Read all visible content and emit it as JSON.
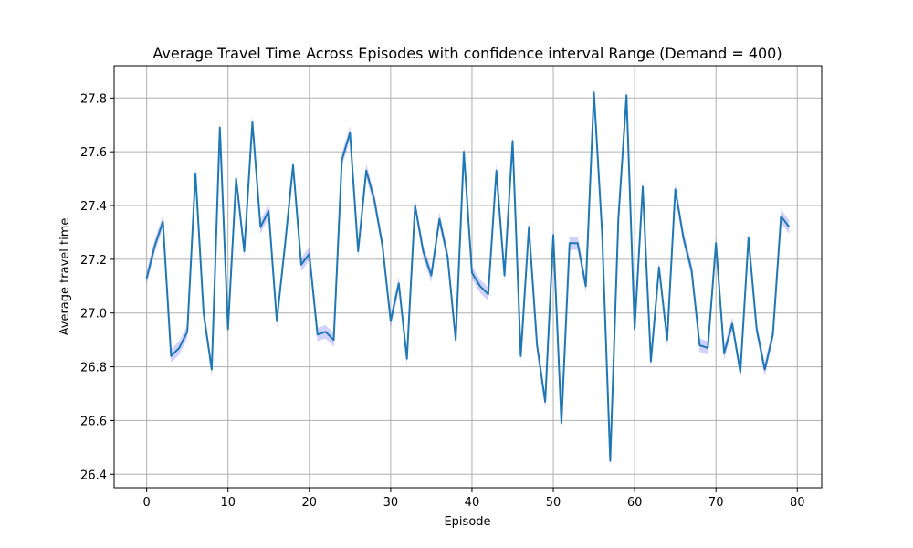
{
  "chart_data": {
    "type": "line",
    "title": "Average Travel Time Across Episodes with confidence interval Range (Demand = 400)",
    "xlabel": "Episode",
    "ylabel": "Average travel time",
    "xlim": [
      -4,
      83
    ],
    "ylim": [
      26.35,
      27.92
    ],
    "xticks": [
      0,
      10,
      20,
      30,
      40,
      50,
      60,
      70,
      80
    ],
    "yticks": [
      26.4,
      26.6,
      26.8,
      27.0,
      27.2,
      27.4,
      27.6,
      27.8
    ],
    "xtick_labels": [
      "0",
      "10",
      "20",
      "30",
      "40",
      "50",
      "60",
      "70",
      "80"
    ],
    "ytick_labels": [
      "26.4",
      "26.6",
      "26.8",
      "27.0",
      "27.2",
      "27.4",
      "27.6",
      "27.8"
    ],
    "grid": true,
    "colors": {
      "line": "#1f77b4",
      "band": "#0000ff",
      "grid": "#b0b0b0"
    },
    "series": [
      {
        "x": [
          0,
          1,
          2,
          3,
          4,
          5,
          6,
          7,
          8,
          9,
          10,
          11,
          12,
          13,
          14,
          15,
          16,
          17,
          18,
          19,
          20,
          21,
          22,
          23,
          24,
          25,
          26,
          27,
          28,
          29,
          30,
          31,
          32,
          33,
          34,
          35,
          36,
          37,
          38,
          39,
          40,
          41,
          42,
          43,
          44,
          45,
          46,
          47,
          48,
          49,
          50,
          51,
          52,
          53,
          54,
          55,
          56,
          57,
          58,
          59,
          60,
          61,
          62,
          63,
          64,
          65,
          66,
          67,
          68,
          69,
          70,
          71,
          72,
          73,
          74,
          75,
          76,
          77,
          78,
          79
        ],
        "y": [
          27.13,
          27.25,
          27.34,
          26.84,
          26.87,
          26.93,
          27.52,
          27.0,
          26.79,
          27.69,
          26.94,
          27.5,
          27.23,
          27.71,
          27.32,
          27.38,
          26.97,
          27.25,
          27.55,
          27.18,
          27.22,
          26.92,
          26.93,
          26.9,
          27.57,
          27.67,
          27.23,
          27.53,
          27.42,
          27.25,
          26.97,
          27.11,
          26.83,
          27.4,
          27.23,
          27.14,
          27.35,
          27.21,
          26.9,
          27.6,
          27.15,
          27.1,
          27.07,
          27.53,
          27.14,
          27.64,
          26.84,
          27.32,
          26.88,
          26.67,
          27.29,
          26.59,
          27.26,
          27.26,
          27.1,
          27.82,
          27.3,
          26.45,
          27.35,
          27.81,
          26.94,
          27.47,
          26.82,
          27.17,
          26.9,
          27.46,
          27.28,
          27.16,
          26.88,
          26.87,
          27.26,
          26.85,
          26.96,
          26.78,
          27.28,
          26.94,
          26.79,
          26.92,
          27.36,
          27.32
        ],
        "ci": 0.025
      }
    ]
  }
}
